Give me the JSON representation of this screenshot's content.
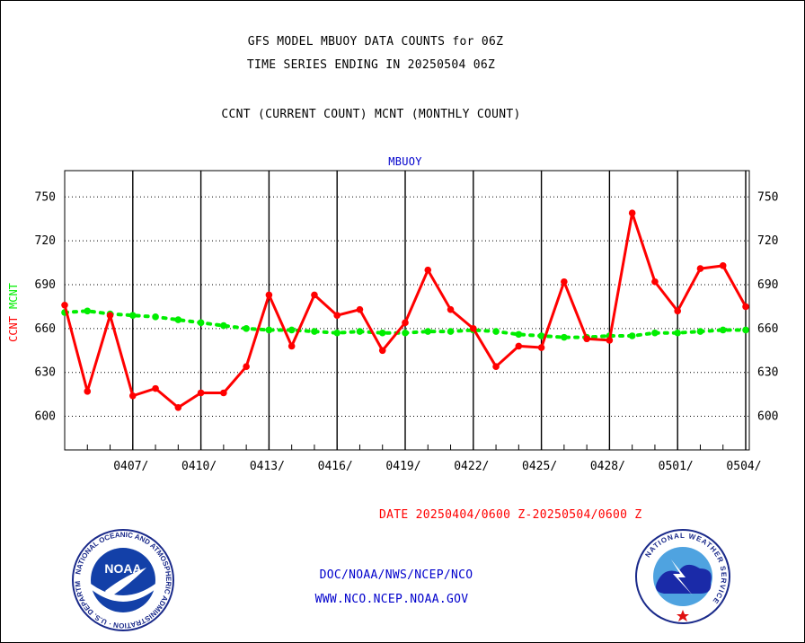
{
  "header": {
    "line1": "GFS MODEL MBUOY DATA COUNTS for 06Z",
    "line2": "TIME SERIES ENDING IN 20250504 06Z",
    "line3": "CCNT (CURRENT COUNT) MCNT (MONTHLY COUNT)"
  },
  "footer": {
    "date_range": "DATE 20250404/0600 Z-20250504/0600 Z",
    "org": "DOC/NOAA/NWS/NCEP/NCO",
    "url": "WWW.NCO.NCEP.NOAA.GOV"
  },
  "logos": {
    "noaa": {
      "label": "NOAA",
      "ring_text": "NATIONAL OCEANIC AND ATMOSPHERIC ADMINISTRATION · U.S. DEPARTMENT OF COMMERCE"
    },
    "nws": {
      "ring_text": "NATIONAL WEATHER SERVICE"
    }
  },
  "colors": {
    "current": "#ff0000",
    "monthly": "#00ee00",
    "text_blue": "#0000cc",
    "text_red": "#ff0000"
  },
  "chart_data": {
    "type": "line",
    "title": "MBUOY",
    "ylabel_left": [
      "CCNT",
      "MCNT"
    ],
    "ylim": [
      577,
      768
    ],
    "yticks": [
      600,
      630,
      660,
      690,
      720,
      750
    ],
    "xlim": [
      0,
      30
    ],
    "xticks": [
      {
        "day": 3,
        "label": "0407/"
      },
      {
        "day": 6,
        "label": "0410/"
      },
      {
        "day": 9,
        "label": "0413/"
      },
      {
        "day": 12,
        "label": "0416/"
      },
      {
        "day": 15,
        "label": "0419/"
      },
      {
        "day": 18,
        "label": "0422/"
      },
      {
        "day": 21,
        "label": "0425/"
      },
      {
        "day": 24,
        "label": "0428/"
      },
      {
        "day": 27,
        "label": "0501/"
      },
      {
        "day": 30,
        "label": "0504/"
      }
    ],
    "grid": true,
    "series": [
      {
        "name": "CCNT",
        "values": [
          [
            0,
            676
          ],
          [
            1,
            617
          ],
          [
            2,
            669
          ],
          [
            3,
            614
          ],
          [
            4,
            619
          ],
          [
            5,
            606
          ],
          [
            6,
            616
          ],
          [
            7,
            616
          ],
          [
            8,
            634
          ],
          [
            9,
            683
          ],
          [
            10,
            648
          ],
          [
            11,
            683
          ],
          [
            12,
            669
          ],
          [
            13,
            673
          ],
          [
            14,
            645
          ],
          [
            15,
            664
          ],
          [
            16,
            700
          ],
          [
            17,
            673
          ],
          [
            18,
            660
          ],
          [
            19,
            634
          ],
          [
            20,
            648
          ],
          [
            21,
            647
          ],
          [
            22,
            692
          ],
          [
            23,
            653
          ],
          [
            24,
            652
          ],
          [
            25,
            739
          ],
          [
            26,
            692
          ],
          [
            27,
            672
          ],
          [
            28,
            701
          ],
          [
            29,
            703
          ],
          [
            30,
            675
          ]
        ]
      },
      {
        "name": "MCNT",
        "values": [
          [
            0,
            671
          ],
          [
            1,
            672
          ],
          [
            2,
            670
          ],
          [
            3,
            669
          ],
          [
            4,
            668
          ],
          [
            5,
            666
          ],
          [
            6,
            664
          ],
          [
            7,
            662
          ],
          [
            8,
            660
          ],
          [
            9,
            659
          ],
          [
            10,
            659
          ],
          [
            11,
            658
          ],
          [
            12,
            657
          ],
          [
            13,
            658
          ],
          [
            14,
            657
          ],
          [
            15,
            657
          ],
          [
            16,
            658
          ],
          [
            17,
            658
          ],
          [
            18,
            659
          ],
          [
            19,
            658
          ],
          [
            20,
            656
          ],
          [
            21,
            655
          ],
          [
            22,
            654
          ],
          [
            23,
            654
          ],
          [
            24,
            655
          ],
          [
            25,
            655
          ],
          [
            26,
            657
          ],
          [
            27,
            657
          ],
          [
            28,
            658
          ],
          [
            29,
            659
          ],
          [
            30,
            659
          ]
        ]
      }
    ]
  }
}
